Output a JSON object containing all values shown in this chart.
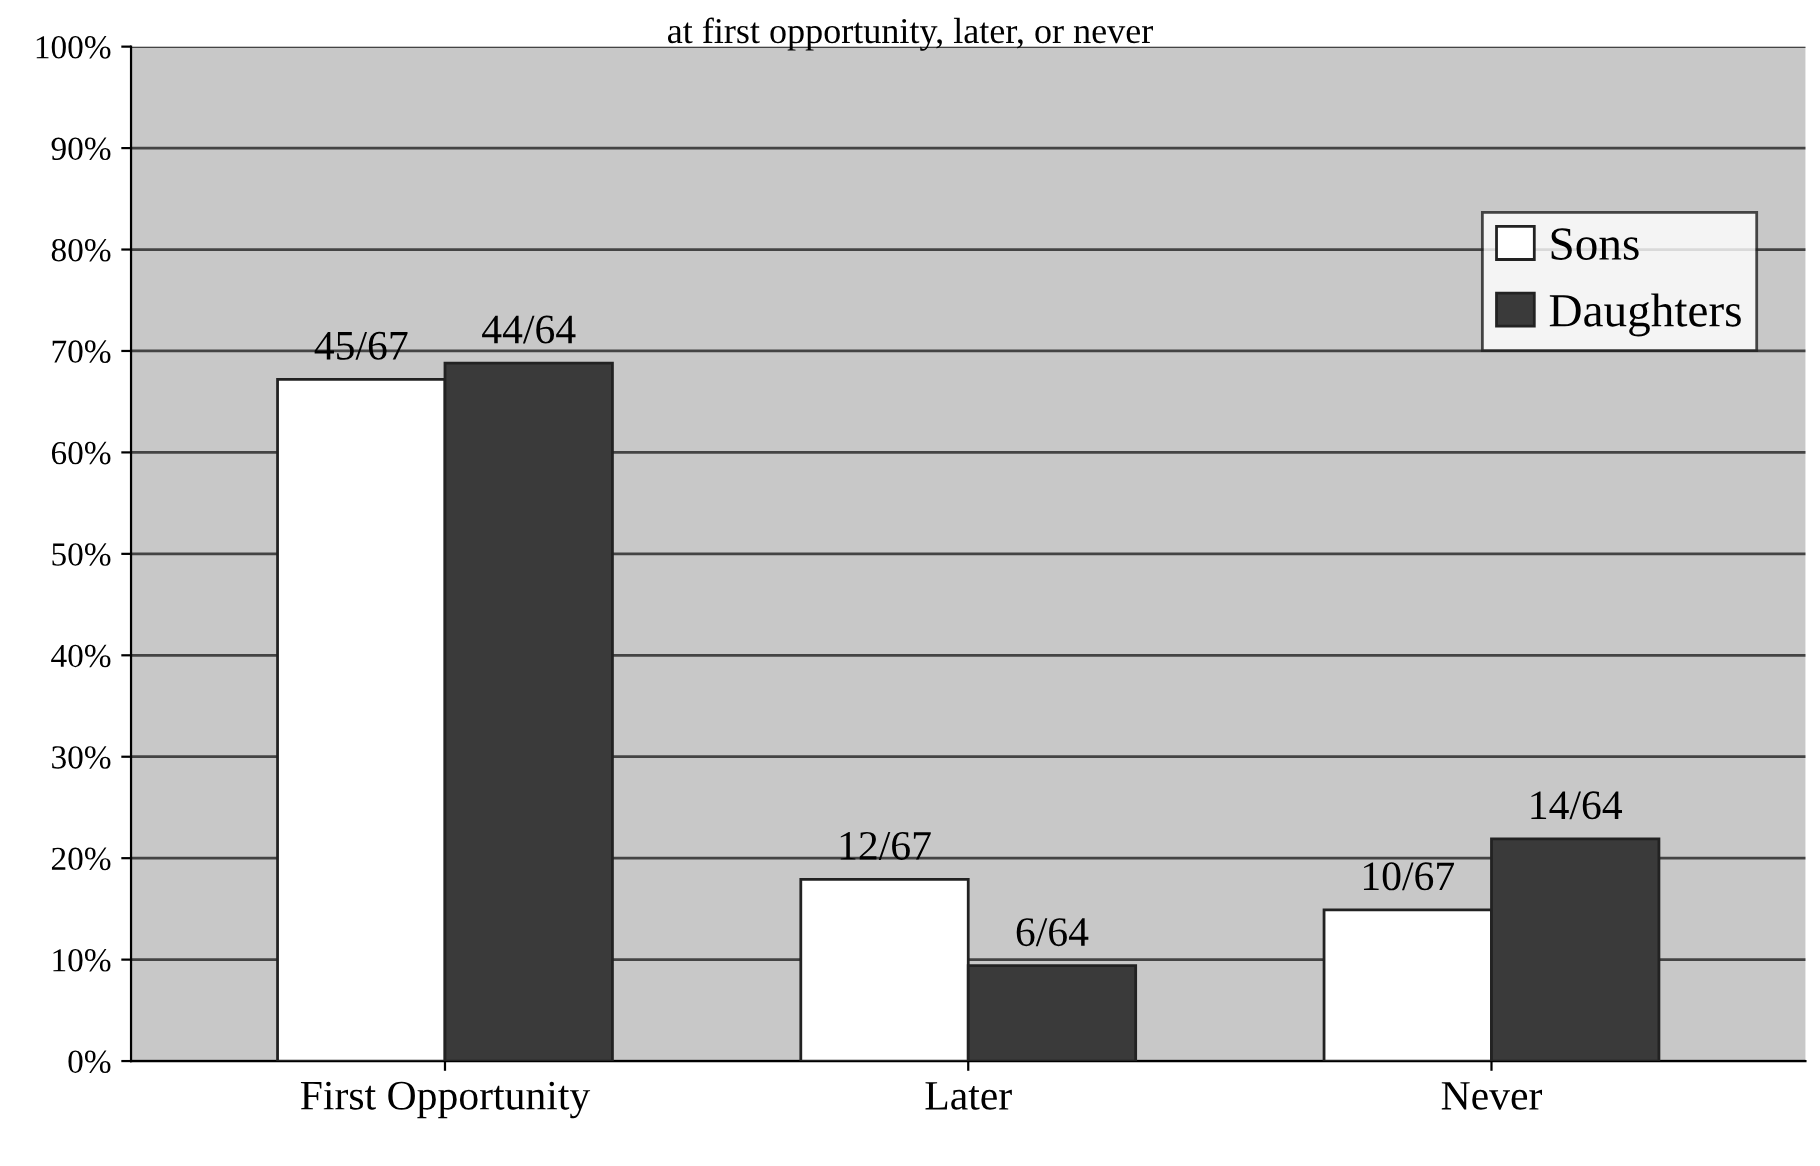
{
  "chart_data": {
    "type": "bar",
    "title": "at first opportunity, later, or never",
    "categories": [
      "First Opportunity",
      "Later",
      "Never"
    ],
    "series": [
      {
        "name": "Sons",
        "color": "#ffffff",
        "values": [
          67.2,
          17.9,
          14.9
        ],
        "value_labels": [
          "45/67",
          "12/67",
          "10/67"
        ]
      },
      {
        "name": "Daughters",
        "color": "#3a3a3a",
        "values": [
          68.8,
          9.4,
          21.9
        ],
        "value_labels": [
          "44/64",
          "6/64",
          "14/64"
        ]
      }
    ],
    "ylim": [
      0,
      100
    ],
    "yticks": [
      {
        "value": 0,
        "label": "0%"
      },
      {
        "value": 10,
        "label": "10%"
      },
      {
        "value": 20,
        "label": "20%"
      },
      {
        "value": 30,
        "label": "30%"
      },
      {
        "value": 40,
        "label": "40%"
      },
      {
        "value": 50,
        "label": "50%"
      },
      {
        "value": 60,
        "label": "60%"
      },
      {
        "value": 70,
        "label": "70%"
      },
      {
        "value": 80,
        "label": "80%"
      },
      {
        "value": 90,
        "label": "90%"
      },
      {
        "value": 100,
        "label": "100%"
      }
    ],
    "grid": "y",
    "legend": "top right"
  }
}
